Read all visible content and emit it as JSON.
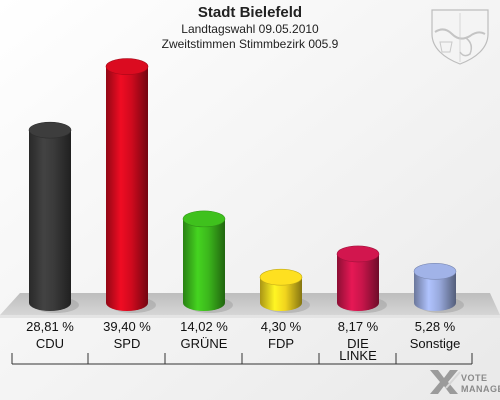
{
  "chart_data": {
    "type": "bar",
    "title": "Stadt Bielefeld",
    "subtitle_1": "Landtagswahl 09.05.2010",
    "subtitle_2": "Zweitstimmen Stimmbezirk 005.9",
    "categories": [
      "CDU",
      "SPD",
      "GRÜNE",
      "FDP",
      "DIE LINKE",
      "Sonstige"
    ],
    "category_lines": [
      [
        "CDU"
      ],
      [
        "SPD"
      ],
      [
        "GRÜNE"
      ],
      [
        "FDP"
      ],
      [
        "DIE",
        "LINKE"
      ],
      [
        "Sonstige"
      ]
    ],
    "values": [
      28.81,
      39.4,
      14.02,
      4.3,
      8.17,
      5.28
    ],
    "value_labels": [
      "28,81 %",
      "39,40 %",
      "14,02 %",
      "4,30 %",
      "8,17 %",
      "5,28 %"
    ],
    "colors": [
      "#3a3a3a",
      "#d10a1e",
      "#3cb81c",
      "#f2d51e",
      "#c8154a",
      "#99aadd"
    ],
    "ylim": [
      0,
      40
    ],
    "grid": false,
    "legend": "none"
  },
  "branding": {
    "line1": "VOTE",
    "line2": "MANAGER",
    "emblem": "nrw-coat-of-arms-icon",
    "logo": "vote-manager-x-icon"
  }
}
